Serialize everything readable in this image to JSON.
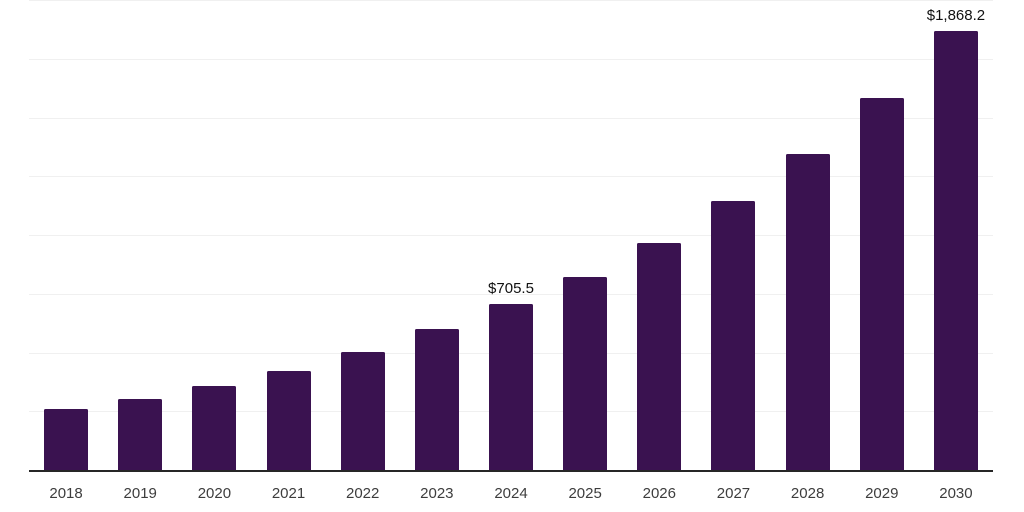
{
  "chart_data": {
    "type": "bar",
    "title": "",
    "xlabel": "",
    "ylabel": "",
    "categories": [
      "2018",
      "2019",
      "2020",
      "2021",
      "2022",
      "2023",
      "2024",
      "2025",
      "2026",
      "2027",
      "2028",
      "2029",
      "2030"
    ],
    "values": [
      258,
      302,
      359,
      421,
      501,
      599,
      705.5,
      823,
      967,
      1145,
      1345,
      1582,
      1868.2
    ],
    "annotations": [
      {
        "category": "2024",
        "text": "$705.5"
      },
      {
        "category": "2030",
        "text": "$1,868.2"
      }
    ],
    "ylim": [
      0,
      2000
    ],
    "gridline_step": 250,
    "grid": true,
    "legend": "none",
    "y_tick_labels_visible": false,
    "colors": {
      "bar": "#3A1250",
      "grid": "#f0f0f0",
      "axis": "#262626",
      "value_label": "#111111",
      "tick_label": "#3d3d3d",
      "background": "#ffffff"
    }
  }
}
